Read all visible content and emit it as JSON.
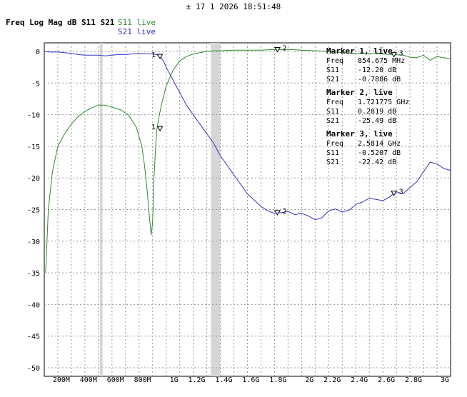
{
  "header": {
    "cursor_symbol": "±",
    "datetime": "17 1 2026 18:51:48"
  },
  "title": "Freq Log Mag dB S11 S21",
  "legend": {
    "s11": "S11 live",
    "s21": "S21 live"
  },
  "colors": {
    "s11": "#2e8b2e",
    "s21": "#3333cc",
    "grid": "#999999",
    "band": "#d6d6d6"
  },
  "chart_data": {
    "type": "line",
    "title": "Freq Log Mag dB S11 S21",
    "xlabel": "",
    "ylabel": "",
    "xlim": [
      0,
      3000
    ],
    "ylim": [
      -50,
      0
    ],
    "x_unit": "MHz",
    "grid": true,
    "x_tick_labels": [
      "200M",
      "400M",
      "600M",
      "800M",
      "1G",
      "1.2G",
      "1.4G",
      "1.6G",
      "1.8G",
      "2G",
      "2.2G",
      "2.4G",
      "2.6G",
      "2.8G",
      "3G"
    ],
    "x_tick_values": [
      200,
      400,
      600,
      800,
      1000,
      1200,
      1400,
      1600,
      1800,
      2000,
      2200,
      2400,
      2600,
      2800,
      3000
    ],
    "y_ticks": [
      0,
      -5,
      -10,
      -15,
      -20,
      -25,
      -30,
      -35,
      -40,
      -45,
      -50
    ],
    "shaded_bands": [
      [
        410,
        430
      ],
      [
        1230,
        1300
      ]
    ],
    "series": [
      {
        "name": "S11 live",
        "x": [
          10,
          30,
          60,
          100,
          150,
          200,
          250,
          300,
          350,
          400,
          450,
          500,
          560,
          620,
          680,
          720,
          740,
          760,
          780,
          790,
          800,
          805,
          810,
          820,
          830,
          850,
          870,
          900,
          950,
          1000,
          1050,
          1100,
          1150,
          1200,
          1250,
          1300,
          1400,
          1500,
          1600,
          1700,
          1721,
          1800,
          1900,
          2000,
          2100,
          2200,
          2300,
          2400,
          2500,
          2581,
          2650,
          2700,
          2750,
          2800,
          2850,
          2900,
          2950,
          3000
        ],
        "values": [
          -35.0,
          -25.0,
          -19.0,
          -15.0,
          -13.0,
          -11.5,
          -10.3,
          -9.5,
          -8.9,
          -8.5,
          -8.5,
          -8.8,
          -9.2,
          -10.0,
          -12.0,
          -15.0,
          -18.0,
          -22.0,
          -27.0,
          -29.0,
          -27.0,
          -24.0,
          -20.0,
          -16.0,
          -12.5,
          -10.0,
          -8.0,
          -5.5,
          -3.0,
          -1.5,
          -0.8,
          -0.4,
          -0.2,
          0.0,
          0.1,
          0.1,
          0.2,
          0.2,
          0.2,
          0.3,
          0.28,
          0.3,
          0.2,
          0.1,
          0.0,
          -0.2,
          -0.3,
          -0.3,
          -0.4,
          -0.52,
          -0.6,
          -0.9,
          -1.0,
          -0.6,
          -1.4,
          -0.8,
          -1.0,
          -1.2
        ]
      },
      {
        "name": "S21 live",
        "x": [
          0,
          50,
          100,
          150,
          200,
          250,
          300,
          350,
          400,
          450,
          500,
          550,
          600,
          650,
          700,
          750,
          800,
          830,
          854.675,
          880,
          900,
          950,
          1000,
          1050,
          1100,
          1150,
          1200,
          1250,
          1300,
          1350,
          1400,
          1450,
          1500,
          1550,
          1600,
          1650,
          1700,
          1721.775,
          1750,
          1800,
          1850,
          1900,
          1950,
          2000,
          2050,
          2100,
          2150,
          2200,
          2250,
          2300,
          2350,
          2400,
          2450,
          2500,
          2550,
          2581.4,
          2600,
          2650,
          2700,
          2750,
          2800,
          2850,
          2900,
          2950,
          3000
        ],
        "values": [
          0.0,
          -0.1,
          -0.1,
          -0.2,
          -0.3,
          -0.5,
          -0.6,
          -0.6,
          -0.6,
          -0.7,
          -0.6,
          -0.5,
          -0.5,
          -0.4,
          -0.3,
          -0.4,
          -0.4,
          -0.5,
          -0.79,
          -1.5,
          -2.5,
          -4.5,
          -6.5,
          -8.5,
          -10.0,
          -11.5,
          -13.0,
          -14.5,
          -16.5,
          -18.0,
          -19.5,
          -21.0,
          -22.5,
          -23.5,
          -24.5,
          -25.2,
          -25.6,
          -25.49,
          -25.5,
          -25.3,
          -25.8,
          -25.6,
          -26.0,
          -26.6,
          -26.3,
          -25.2,
          -24.9,
          -25.4,
          -25.1,
          -24.2,
          -23.8,
          -23.2,
          -23.4,
          -23.6,
          -23.0,
          -22.42,
          -22.2,
          -22.5,
          -21.5,
          -20.6,
          -19.0,
          -17.5,
          -17.8,
          -18.5,
          -18.8
        ]
      }
    ],
    "markers": [
      {
        "label": "1",
        "x": 854.675,
        "s11": -12.2,
        "s21": -0.7886
      },
      {
        "label": "2",
        "x": 1721.775,
        "s11": 0.2819,
        "s21": -25.49
      },
      {
        "label": "3",
        "x": 2581.4,
        "s11": -0.5207,
        "s21": -22.42
      }
    ]
  },
  "marker_panel": [
    {
      "heading": "Marker 1, live",
      "freq_label": "Freq",
      "freq": "854.675 MHz",
      "s11_label": "S11",
      "s11": "-12.20 dB",
      "s21_label": "S21",
      "s21": "-0.7886 dB"
    },
    {
      "heading": "Marker 2, live",
      "freq_label": "Freq",
      "freq": "1.721775 GHz",
      "s11_label": "S11",
      "s11": "0.2819 dB",
      "s21_label": "S21",
      "s21": "-25.49 dB"
    },
    {
      "heading": "Marker 3, live",
      "freq_label": "Freq",
      "freq": "2.5814 GHz",
      "s11_label": "S11",
      "s11": "-0.5207 dB",
      "s21_label": "S21",
      "s21": "-22.42 dB"
    }
  ]
}
